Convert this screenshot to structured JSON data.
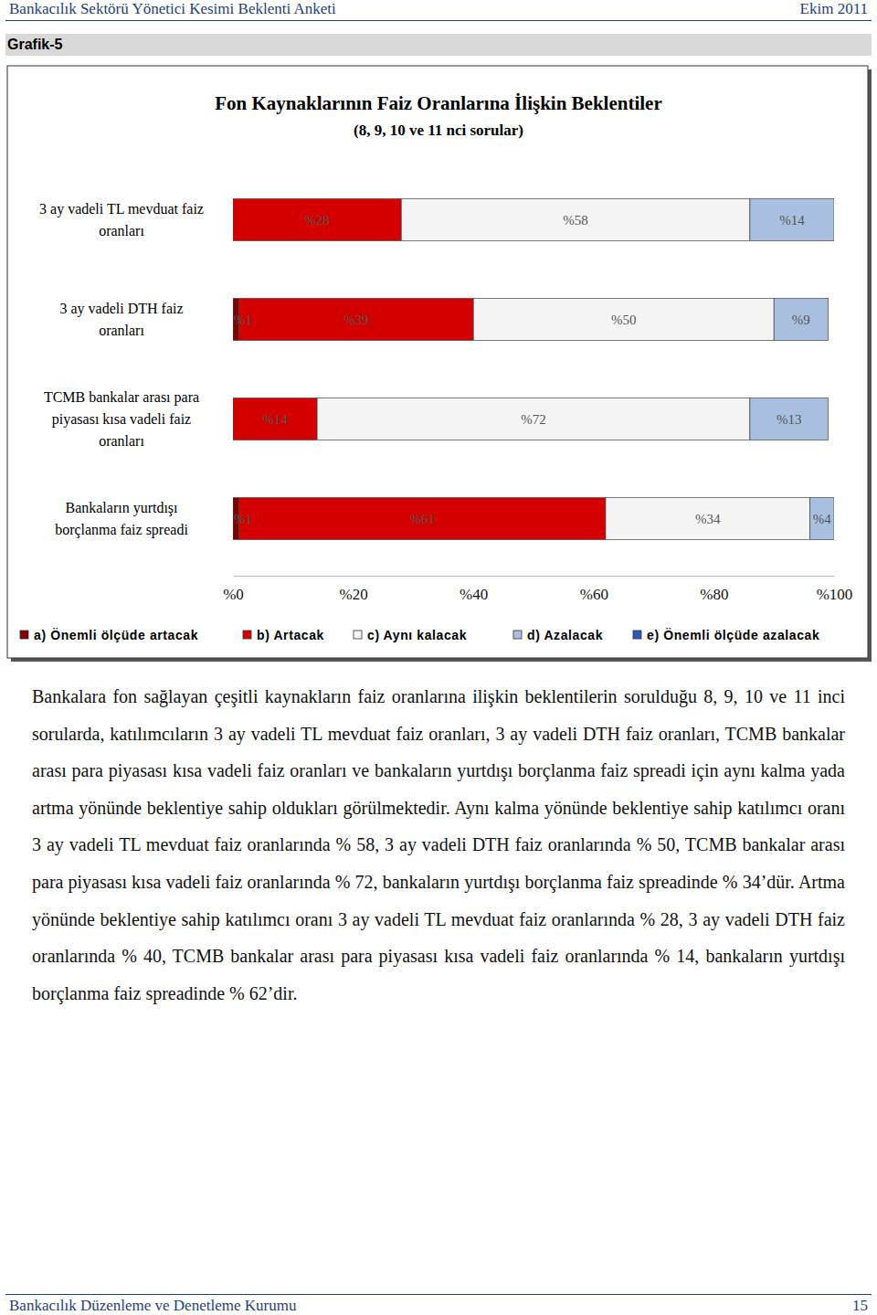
{
  "chart_data": {
    "type": "bar",
    "orientation": "horizontal",
    "stacked": true,
    "data_labels": true,
    "grid": false,
    "title": "Fon Kaynaklarının Faiz Oranlarına İlişkin Beklentiler",
    "subtitle": "(8, 9, 10 ve 11 nci sorular)",
    "categories": [
      "3 ay vadeli TL mevduat faiz\noranları",
      "3 ay vadeli DTH faiz\noranları",
      "TCMB bankalar arası para\npiyasası kısa vadeli faiz\noranları",
      "Bankaların yurtdışı\nborçlanma faiz spreadi"
    ],
    "series": [
      {
        "name": "a) Önemli ölçüde artacak",
        "color": "#7f0000",
        "values": [
          0,
          1,
          0,
          1
        ],
        "value_labels": [
          null,
          "%1",
          null,
          "%1"
        ]
      },
      {
        "name": "b) Artacak",
        "color": "#d40000",
        "values": [
          28,
          39,
          14,
          61
        ],
        "value_labels": [
          "%28",
          "%39",
          "%14",
          "%61"
        ]
      },
      {
        "name": "c) Aynı kalacak",
        "color": "#f4f4f4",
        "values": [
          58,
          50,
          72,
          34
        ],
        "value_labels": [
          "%58",
          "%50",
          "%72",
          "%34"
        ]
      },
      {
        "name": "d) Azalacak",
        "color": "#a8bfe0",
        "values": [
          14,
          9,
          13,
          4
        ],
        "value_labels": [
          "%14",
          "%9",
          "%13",
          "%4"
        ]
      },
      {
        "name": "e) Önemli ölçüde azalacak",
        "color": "#2e59b8",
        "values": [
          0,
          0,
          0,
          0
        ],
        "value_labels": [
          null,
          null,
          null,
          null
        ]
      }
    ],
    "xlim": [
      0,
      100
    ],
    "xticks": [
      {
        "value": 0,
        "label": "%0"
      },
      {
        "value": 20,
        "label": "%20"
      },
      {
        "value": 40,
        "label": "%40"
      },
      {
        "value": 60,
        "label": "%60"
      },
      {
        "value": 80,
        "label": "%80"
      },
      {
        "value": 100,
        "label": "%100"
      }
    ],
    "legend": "bottom"
  },
  "page": {
    "header_left": "Bankacılık Sektörü Yönetici Kesimi Beklenti Anketi",
    "header_right": "Ekim 2011",
    "figure_label": "Grafik-5",
    "paragraph": "Bankalara fon sağlayan çeşitli kaynakların faiz oranlarına ilişkin beklentilerin sorulduğu 8, 9, 10 ve 11 inci sorularda, katılımcıların 3 ay vadeli TL mevduat faiz oranları, 3 ay vadeli DTH faiz oranları, TCMB bankalar arası para piyasası kısa vadeli faiz oranları ve bankaların yurtdışı borçlanma faiz spreadi için aynı kalma yada artma yönünde beklentiye sahip oldukları görülmektedir. Aynı kalma yönünde beklentiye sahip katılımcı oranı 3 ay vadeli TL mevduat faiz oranlarında % 58, 3 ay vadeli DTH faiz oranlarında % 50, TCMB bankalar arası para piyasası kısa vadeli faiz oranlarında % 72,  bankaların yurtdışı borçlanma faiz spreadinde % 34’dür. Artma yönünde beklentiye sahip katılımcı oranı 3 ay vadeli TL mevduat faiz oranlarında % 28, 3 ay vadeli DTH faiz oranlarında % 40, TCMB bankalar arası para piyasası kısa vadeli faiz oranlarında % 14,  bankaların yurtdışı borçlanma faiz spreadinde  % 62’dir.",
    "footer_left": "Bankacılık Düzenleme ve Denetleme Kurumu",
    "footer_right": "15"
  }
}
